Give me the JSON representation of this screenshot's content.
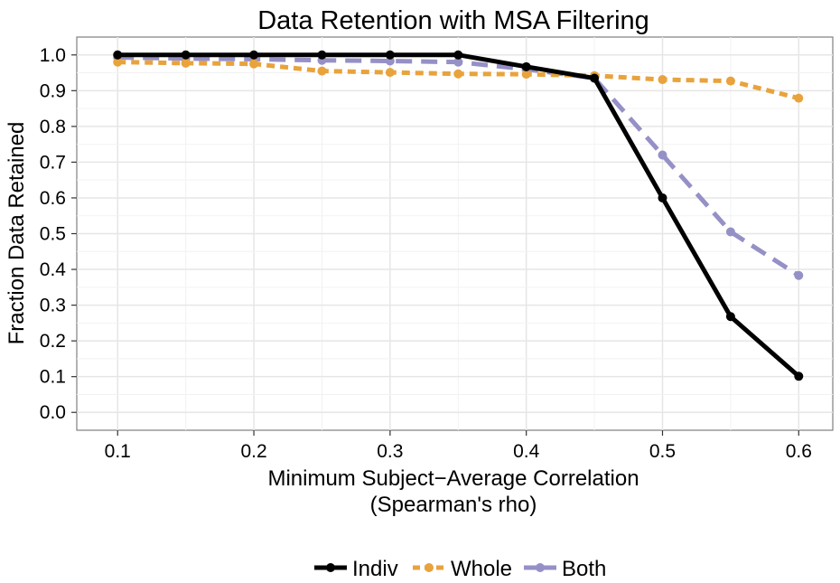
{
  "chart_data": {
    "type": "line",
    "title": "Data Retention with MSA Filtering",
    "xlabel_line1": "Minimum Subject−Average Correlation",
    "xlabel_line2": "(Spearman's rho)",
    "ylabel": "Fraction Data Retained",
    "xlim": [
      0.07,
      0.625
    ],
    "ylim": [
      -0.05,
      1.05
    ],
    "x_ticks": [
      "0.1",
      "0.2",
      "0.3",
      "0.4",
      "0.5",
      "0.6"
    ],
    "y_ticks": [
      "0.0",
      "0.1",
      "0.2",
      "0.3",
      "0.4",
      "0.5",
      "0.6",
      "0.7",
      "0.8",
      "0.9",
      "1.0"
    ],
    "grid": true,
    "legend_position": "bottom",
    "x": [
      0.1,
      0.15,
      0.2,
      0.25,
      0.3,
      0.35,
      0.4,
      0.45,
      0.5,
      0.55,
      0.6
    ],
    "series": [
      {
        "name": "Indiv",
        "color": "#000000",
        "dash": "solid",
        "values": [
          1.0,
          1.0,
          1.0,
          1.0,
          1.0,
          1.0,
          0.967,
          0.935,
          0.6,
          0.268,
          0.101
        ]
      },
      {
        "name": "Whole",
        "color": "#E8A33C",
        "dash": "dotted",
        "values": [
          0.98,
          0.977,
          0.975,
          0.955,
          0.951,
          0.947,
          0.946,
          0.942,
          0.931,
          0.927,
          0.879
        ]
      },
      {
        "name": "Both",
        "color": "#9590C6",
        "dash": "dashed",
        "values": [
          0.993,
          0.99,
          0.988,
          0.985,
          0.983,
          0.98,
          0.96,
          0.935,
          0.72,
          0.505,
          0.383
        ]
      }
    ]
  }
}
